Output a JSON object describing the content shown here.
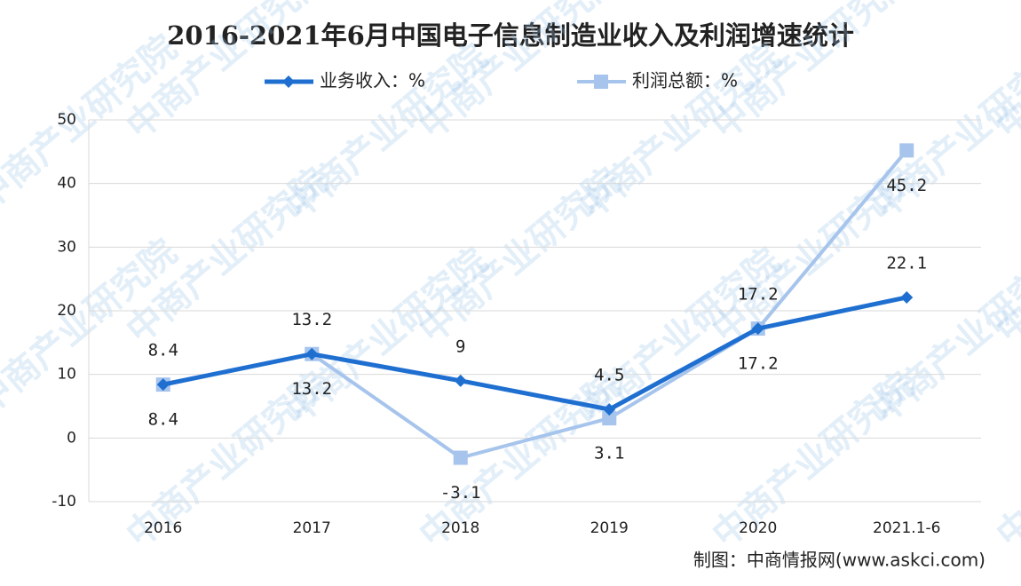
{
  "chart_data": {
    "type": "line",
    "title": "2016-2021年6月中国电子信息制造业收入及利润增速统计",
    "categories": [
      "2016",
      "2017",
      "2018",
      "2019",
      "2020",
      "2021.1-6"
    ],
    "series": [
      {
        "name": "业务收入：%",
        "color": "#1f6fd1",
        "marker": "diamond",
        "values": [
          8.4,
          13.2,
          9,
          4.5,
          17.2,
          22.1
        ]
      },
      {
        "name": "利润总额：%",
        "color": "#a6c4ec",
        "marker": "square",
        "values": [
          8.4,
          13.2,
          -3.1,
          3.1,
          17.2,
          45.2
        ]
      }
    ],
    "ylim": [
      -10,
      50
    ],
    "yticks": [
      -10,
      0,
      10,
      20,
      30,
      40,
      50
    ],
    "grid": true,
    "legend": "top",
    "source": "制图：中商情报网(www.askci.com)",
    "watermark": "中商产业研究院"
  }
}
